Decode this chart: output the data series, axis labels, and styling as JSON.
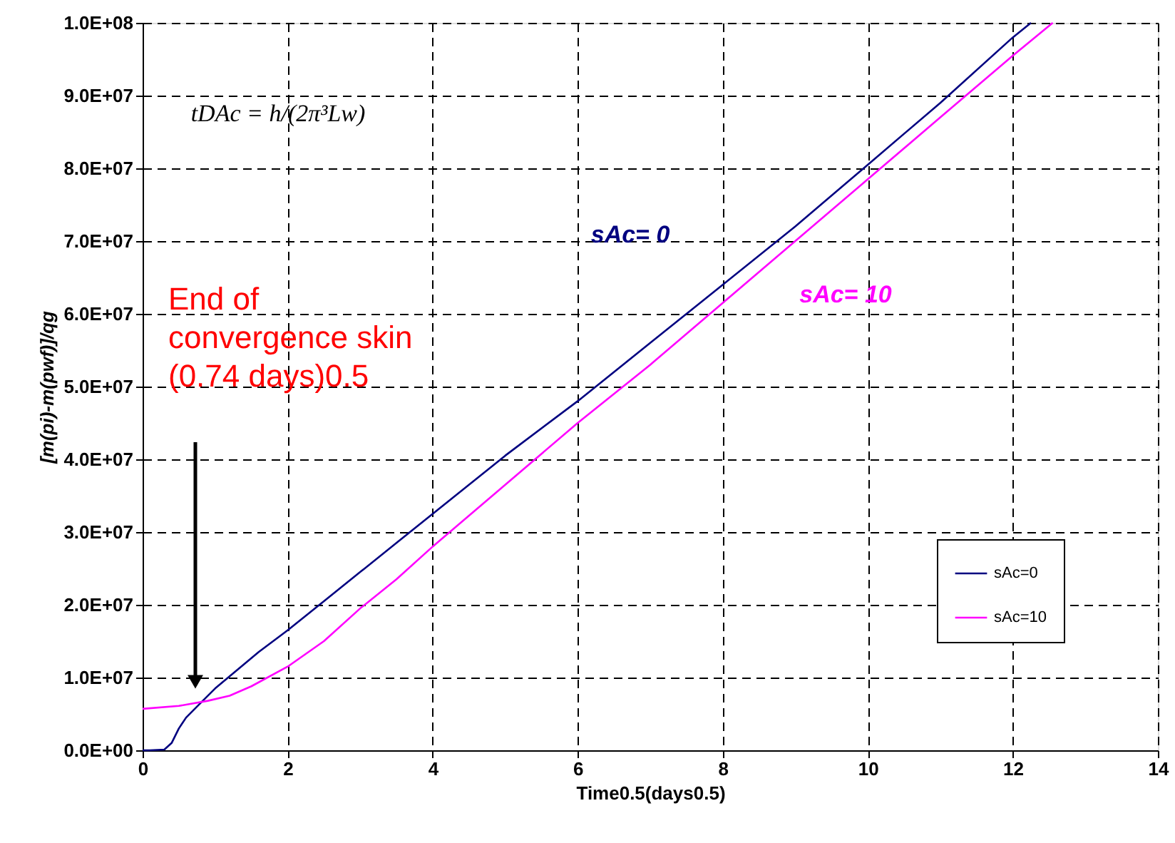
{
  "chart_data": {
    "type": "line",
    "xlabel": "Time0.5(days0.5)",
    "ylabel": "[m(pi)-m(pwf)]/qg",
    "xlim": [
      0,
      14
    ],
    "xticks": [
      0,
      2,
      4,
      6,
      8,
      10,
      12,
      14
    ],
    "ylim": [
      0,
      100000000
    ],
    "yticks": [
      {
        "value": 0,
        "label": "0.0E+00"
      },
      {
        "value": 10000000,
        "label": "1.0E+07"
      },
      {
        "value": 20000000,
        "label": "2.0E+07"
      },
      {
        "value": 30000000,
        "label": "3.0E+07"
      },
      {
        "value": 40000000,
        "label": "4.0E+07"
      },
      {
        "value": 50000000,
        "label": "5.0E+07"
      },
      {
        "value": 60000000,
        "label": "6.0E+07"
      },
      {
        "value": 70000000,
        "label": "7.0E+07"
      },
      {
        "value": 80000000,
        "label": "8.0E+07"
      },
      {
        "value": 90000000,
        "label": "9.0E+07"
      },
      {
        "value": 100000000,
        "label": "1.0E+08"
      }
    ],
    "grid": true,
    "legend": "bottom right",
    "line_style": "dashed",
    "series": [
      {
        "name": "sAc=0",
        "color": "#000080",
        "line_style": "solid",
        "x": [
          0,
          0.1,
          0.3,
          0.4,
          0.5,
          0.6,
          0.8,
          1.0,
          1.3,
          1.6,
          2,
          2.5,
          3,
          3.5,
          4,
          5,
          6,
          7,
          8,
          9,
          10,
          11,
          12,
          12.25
        ],
        "values": [
          0,
          0,
          100000,
          1000000,
          3000000,
          4500000,
          6500000,
          8500000,
          11000000,
          13500000,
          16500000,
          20500000,
          24500000,
          28500000,
          32500000,
          40500000,
          48000000,
          56000000,
          64000000,
          72000000,
          80500000,
          89000000,
          98000000,
          100000000
        ]
      },
      {
        "name": "sAc=10",
        "color": "#ff00ff",
        "line_style": "solid",
        "x": [
          0,
          0.5,
          0.9,
          1.2,
          1.5,
          2,
          2.5,
          3,
          3.5,
          4,
          5,
          6,
          7,
          8,
          9,
          10,
          11,
          12,
          12.55
        ],
        "values": [
          5700000,
          6100000,
          6800000,
          7500000,
          8800000,
          11500000,
          15000000,
          19500000,
          23500000,
          28000000,
          36500000,
          45000000,
          53000000,
          61500000,
          70000000,
          78500000,
          87000000,
          95500000,
          100000000
        ]
      }
    ],
    "annotations": [
      "tDAc = h/(2π³Lw)",
      "End of convergence skin (0.74 days)0.5",
      "sAc= 0",
      "sAc= 10"
    ]
  }
}
